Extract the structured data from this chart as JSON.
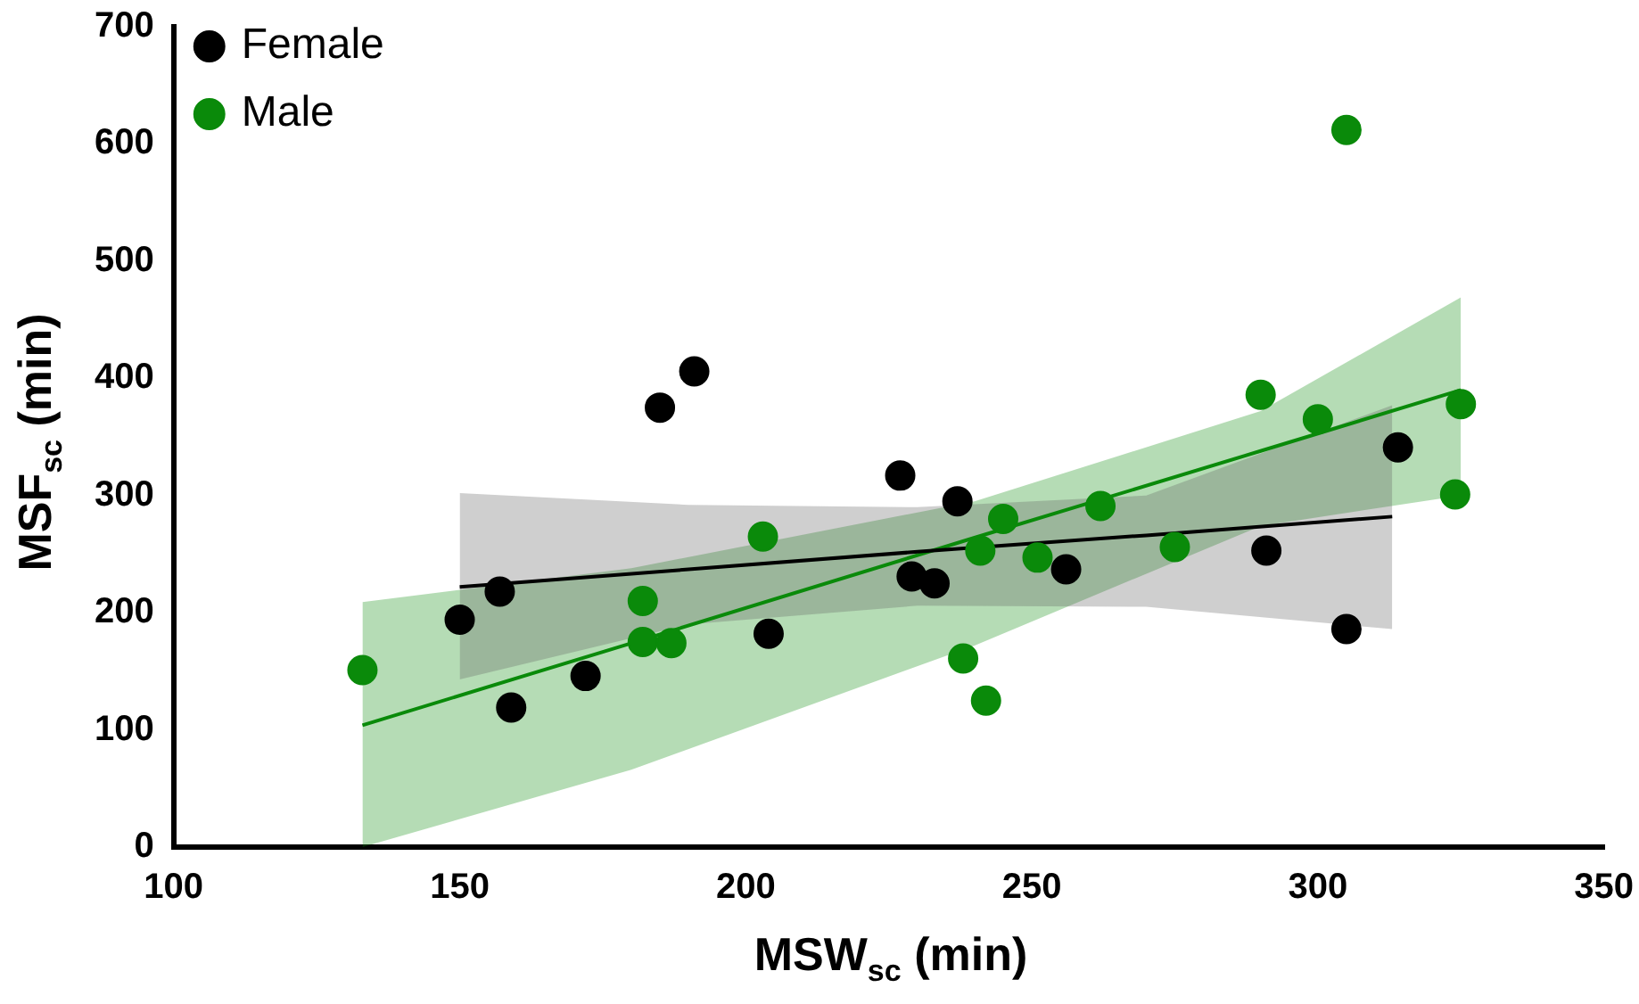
{
  "chart_data": {
    "type": "scatter",
    "xlabel": "MSW$_{sc}$ (min)",
    "ylabel": "MSF$_{sc}$ (min)",
    "xlim": [
      100,
      350
    ],
    "xticks": [
      100,
      150,
      200,
      250,
      300,
      350
    ],
    "ylim": [
      0,
      700
    ],
    "yticks": [
      0,
      100,
      200,
      300,
      400,
      500,
      600,
      700
    ],
    "grid": false,
    "legend": "top left",
    "marker": "circle",
    "series": [
      {
        "name": "Female",
        "color": "#000000",
        "x": [
          150,
          157,
          159,
          172,
          185,
          191,
          204,
          227,
          229,
          233,
          237,
          256,
          291,
          305,
          314
        ],
        "values": [
          194,
          218,
          119,
          146,
          375,
          406,
          182,
          317,
          231,
          225,
          295,
          237,
          253,
          186,
          341
        ]
      },
      {
        "name": "Male",
        "color": "#0a8a0a",
        "x": [
          133,
          182,
          182,
          187,
          203,
          238,
          241,
          242,
          245,
          251,
          262,
          275,
          290,
          300,
          305,
          324,
          325
        ],
        "values": [
          151,
          210,
          175,
          174,
          265,
          161,
          253,
          125,
          280,
          247,
          291,
          256,
          386,
          365,
          612,
          301,
          378
        ]
      },
      {
        "type": "line",
        "marker": "none",
        "color": "#000000",
        "x": [
          150,
          190,
          230,
          270,
          313
        ],
        "values": [
          222,
          237,
          252,
          266,
          282
        ],
        "lower": [
          143,
          190,
          206,
          205,
          186
        ],
        "upper": [
          302,
          292,
          290,
          300,
          377
        ]
      },
      {
        "type": "line",
        "marker": "none",
        "color": "#0a8a0a",
        "x": [
          133,
          180,
          240,
          290,
          325
        ],
        "values": [
          104,
          174,
          264,
          338,
          390
        ],
        "lower": [
          0,
          66,
          172,
          274,
          300
        ],
        "upper": [
          209,
          238,
          295,
          372,
          469
        ]
      }
    ]
  }
}
